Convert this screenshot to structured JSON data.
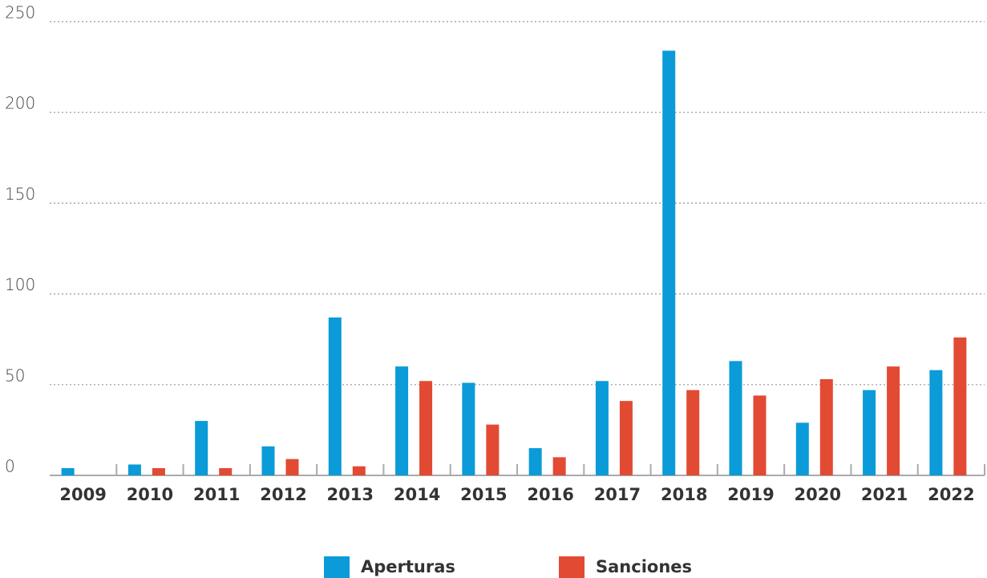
{
  "chart_data": {
    "type": "bar",
    "categories": [
      "2009",
      "2010",
      "2011",
      "2012",
      "2013",
      "2014",
      "2015",
      "2016",
      "2017",
      "2018",
      "2019",
      "2020",
      "2021",
      "2022"
    ],
    "series": [
      {
        "name": "Aperturas",
        "color": "#0a9bd8",
        "values": [
          4,
          6,
          30,
          16,
          87,
          60,
          51,
          15,
          52,
          234,
          63,
          29,
          47,
          58
        ]
      },
      {
        "name": "Sanciones",
        "color": "#e24a33",
        "values": [
          0,
          4,
          4,
          9,
          5,
          52,
          28,
          10,
          41,
          47,
          44,
          53,
          60,
          76
        ]
      }
    ],
    "ylim": [
      0,
      250
    ],
    "yticks": [
      0,
      50,
      100,
      150,
      200,
      250
    ],
    "grid": true,
    "legend": "bottom"
  }
}
